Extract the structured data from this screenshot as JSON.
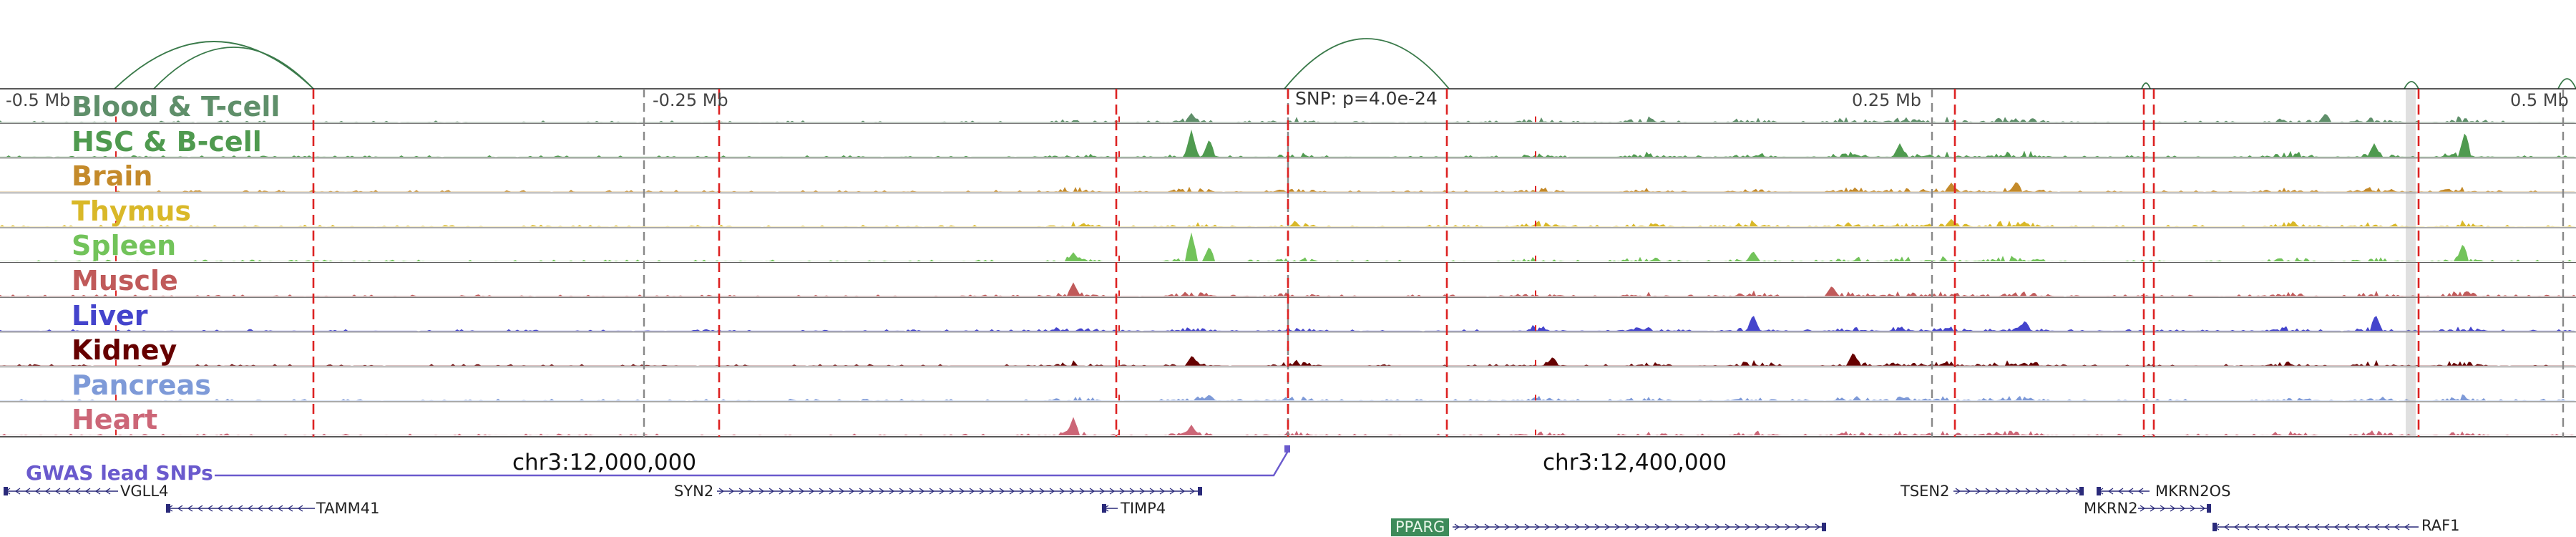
{
  "axis": {
    "ticks": [
      "-0.5 Mb",
      "-0.25 Mb",
      "SNP: p=4.0e-24",
      "0.25 Mb",
      "0.5 Mb"
    ],
    "coordinates": [
      "chr3:12,000,000",
      "chr3:12,400,000"
    ]
  },
  "tracks": [
    {
      "id": "blood-t-cell",
      "label": "Blood & T-cell",
      "color": "#5f8f6a"
    },
    {
      "id": "hsc-b-cell",
      "label": "HSC & B-cell",
      "color": "#4f9a4f"
    },
    {
      "id": "brain",
      "label": "Brain",
      "color": "#c48a2a"
    },
    {
      "id": "thymus",
      "label": "Thymus",
      "color": "#d9b828"
    },
    {
      "id": "spleen",
      "label": "Spleen",
      "color": "#72c35a"
    },
    {
      "id": "muscle",
      "label": "Muscle",
      "color": "#c05a5a"
    },
    {
      "id": "liver",
      "label": "Liver",
      "color": "#4444cc"
    },
    {
      "id": "kidney",
      "label": "Kidney",
      "color": "#660000"
    },
    {
      "id": "pancreas",
      "label": "Pancreas",
      "color": "#7e9ad8"
    },
    {
      "id": "heart",
      "label": "Heart",
      "color": "#cc6677"
    }
  ],
  "gwas": {
    "label": "GWAS lead SNPs",
    "color": "#6a5acd"
  },
  "genes": [
    {
      "name": "VGLL4",
      "strand": "-"
    },
    {
      "name": "TAMM41",
      "strand": "-"
    },
    {
      "name": "SYN2",
      "strand": "+"
    },
    {
      "name": "TIMP4",
      "strand": "-"
    },
    {
      "name": "PPARG",
      "strand": "+",
      "highlighted": true
    },
    {
      "name": "TSEN2",
      "strand": "+"
    },
    {
      "name": "MKRN2OS",
      "strand": "-"
    },
    {
      "name": "MKRN2",
      "strand": "+"
    },
    {
      "name": "RAF1",
      "strand": "-"
    }
  ],
  "colors": {
    "enhancer_line": "#dd2222",
    "gwas_line": "#888888",
    "arc": "#3a7a4a",
    "gene": "#2a2a7a",
    "highlight": "#3d8b5a"
  }
}
